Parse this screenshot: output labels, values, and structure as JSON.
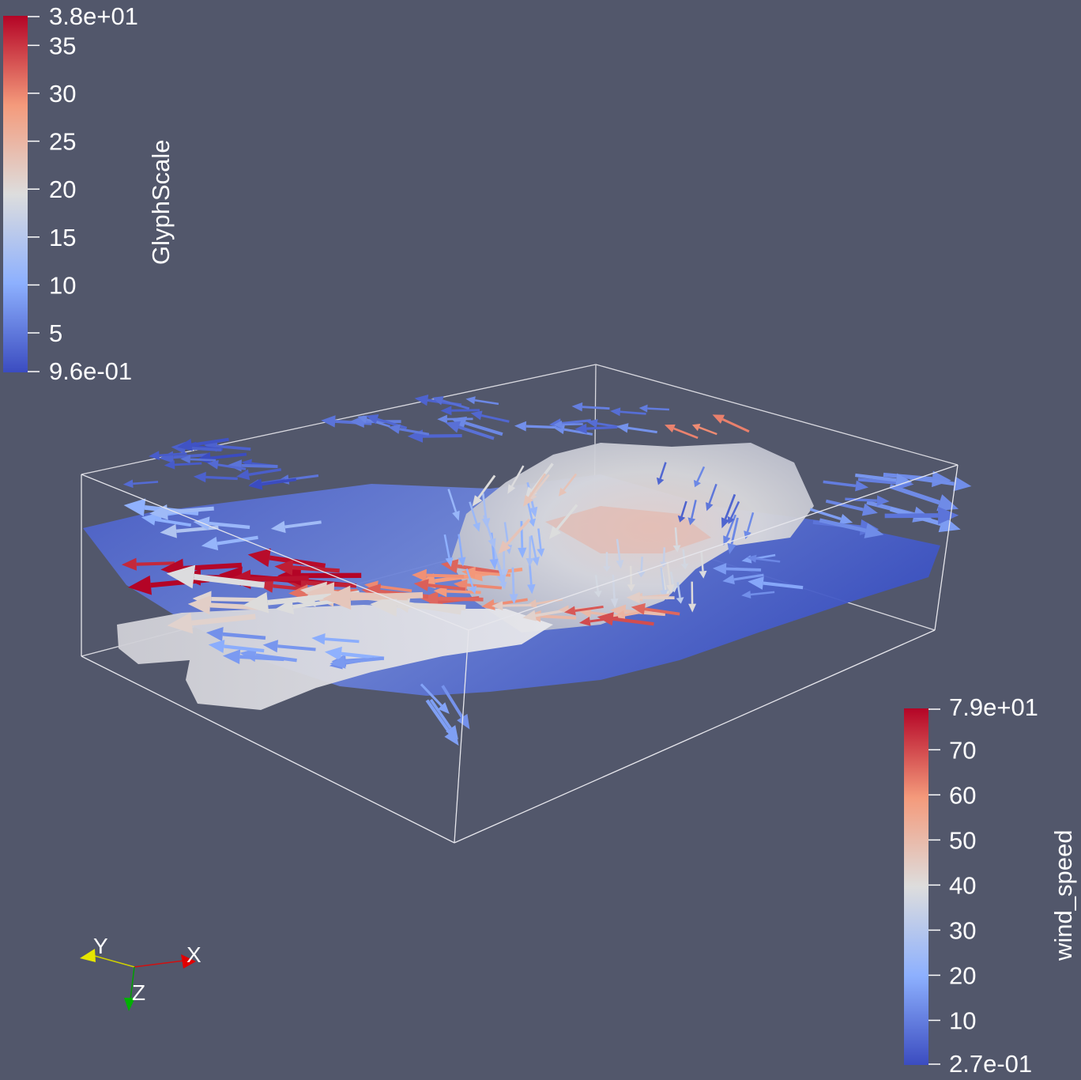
{
  "colors": {
    "background": "#52576b",
    "low": "#3b4cc0",
    "mid": "#dddddd",
    "high": "#b40426",
    "bbox": "#dddddd",
    "axis_x": "#e00000",
    "axis_y": "#e6e600",
    "axis_z": "#00b000"
  },
  "glyph_scale_bar": {
    "title": "GlyphScale",
    "range": [
      0.96,
      38
    ],
    "max_label": "3.8e+01",
    "min_label": "9.6e-01",
    "ticks": [
      {
        "value": 35,
        "label": "35"
      },
      {
        "value": 30,
        "label": "30"
      },
      {
        "value": 25,
        "label": "25"
      },
      {
        "value": 20,
        "label": "20"
      },
      {
        "value": 15,
        "label": "15"
      },
      {
        "value": 10,
        "label": "10"
      },
      {
        "value": 5,
        "label": "5"
      }
    ]
  },
  "wind_speed_bar": {
    "title": "wind_speed",
    "range": [
      0.27,
      79
    ],
    "max_label": "7.9e+01",
    "min_label": "2.7e-01",
    "ticks": [
      {
        "value": 70,
        "label": "70"
      },
      {
        "value": 60,
        "label": "60"
      },
      {
        "value": 50,
        "label": "50"
      },
      {
        "value": 40,
        "label": "40"
      },
      {
        "value": 30,
        "label": "30"
      },
      {
        "value": 20,
        "label": "20"
      },
      {
        "value": 10,
        "label": "10"
      }
    ]
  },
  "orientation_axes": {
    "x_label": "X",
    "y_label": "Y",
    "z_label": "Z"
  }
}
